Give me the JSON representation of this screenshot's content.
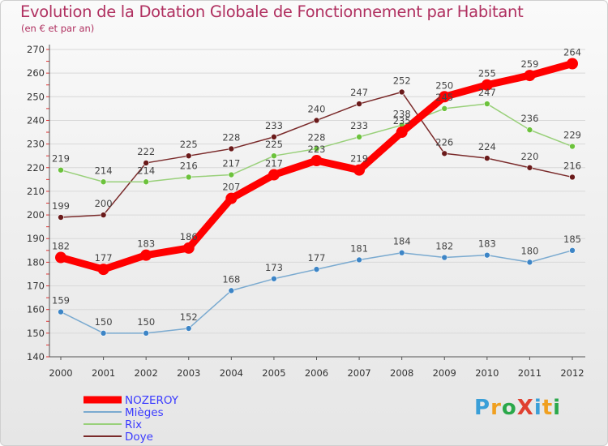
{
  "title": "Evolution de la Dotation Globale de Fonctionnement par Habitant",
  "subtitle": "(en € et par an)",
  "logo": {
    "text": "ProXiti",
    "letters": [
      {
        "ch": "P",
        "color": "#3a9fd8"
      },
      {
        "ch": "r",
        "color": "#f0a020"
      },
      {
        "ch": "o",
        "color": "#2aa84a"
      },
      {
        "ch": "X",
        "color": "#e04030"
      },
      {
        "ch": "i",
        "color": "#3a9fd8"
      },
      {
        "ch": "t",
        "color": "#f0a020"
      },
      {
        "ch": "i",
        "color": "#2aa84a"
      }
    ]
  },
  "chart_data": {
    "type": "line",
    "title": "Evolution de la Dotation Globale de Fonctionnement par Habitant",
    "ylabel": "(en € et par an)",
    "xlabel": "",
    "categories": [
      "2000",
      "2001",
      "2002",
      "2003",
      "2004",
      "2005",
      "2006",
      "2007",
      "2008",
      "2009",
      "2010",
      "2011",
      "2012"
    ],
    "ylim": [
      140,
      270
    ],
    "yticks": [
      140,
      150,
      160,
      170,
      180,
      190,
      200,
      210,
      220,
      230,
      240,
      250,
      260,
      270
    ],
    "grid": "horizontal",
    "legend_position": "bottom-left",
    "series": [
      {
        "name": "Doye",
        "color": "#7a2a2a",
        "marker": "#6a1a1a",
        "emphasis": false,
        "values": [
          199,
          200,
          222,
          225,
          228,
          233,
          240,
          247,
          252,
          226,
          224,
          220,
          216
        ]
      },
      {
        "name": "Rix",
        "color": "#99d07a",
        "marker": "#6cc23c",
        "emphasis": false,
        "values": [
          219,
          214,
          214,
          216,
          217,
          225,
          228,
          233,
          238,
          245,
          247,
          236,
          229
        ]
      },
      {
        "name": "Mièges",
        "color": "#7aaad0",
        "marker": "#3d85c6",
        "emphasis": false,
        "values": [
          159,
          150,
          150,
          152,
          168,
          173,
          177,
          181,
          184,
          182,
          183,
          180,
          185
        ]
      },
      {
        "name": "NOZEROY",
        "color": "#ff0000",
        "marker": "#ff0000",
        "emphasis": true,
        "values": [
          182,
          177,
          183,
          186,
          207,
          217,
          223,
          219,
          235,
          250,
          255,
          259,
          264
        ]
      }
    ],
    "legend_order": [
      "NOZEROY",
      "Mièges",
      "Rix",
      "Doye"
    ]
  }
}
